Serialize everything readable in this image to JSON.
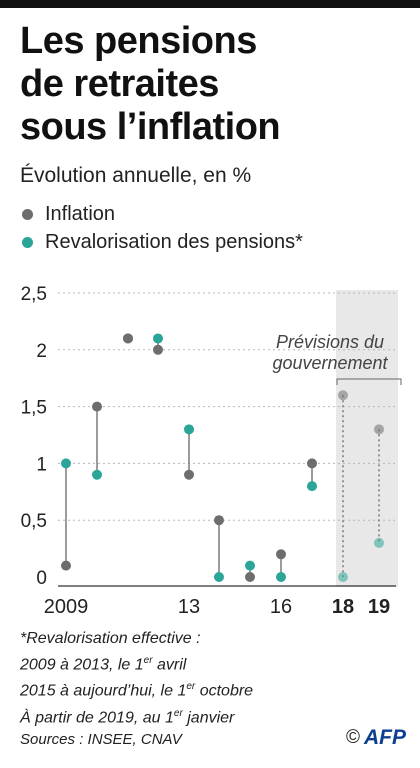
{
  "header": {
    "title_lines": [
      "Les pensions",
      "de retraites",
      "sous l’inflation"
    ],
    "subtitle": "Évolution annuelle, en %"
  },
  "colors": {
    "inflation": "#6d6d6d",
    "revalorisation": "#2aa597",
    "forecast_band": "#e8e8e8",
    "grid": "#b8b8b8"
  },
  "chart_data": {
    "type": "scatter",
    "title": "Les pensions de retraites sous l’inflation",
    "subtitle": "Évolution annuelle, en %",
    "ylim": [
      0,
      2.5
    ],
    "y_ticks": [
      "0",
      "0,5",
      "1",
      "1,5",
      "2",
      "2,5"
    ],
    "x_tick_labels": [
      {
        "x": 2009,
        "label": "2009",
        "bold": false
      },
      {
        "x": 2013,
        "label": "13",
        "bold": false
      },
      {
        "x": 2016,
        "label": "16",
        "bold": false
      },
      {
        "x": 2018,
        "label": "18",
        "bold": true
      },
      {
        "x": 2019,
        "label": "19",
        "bold": true
      }
    ],
    "x": [
      2009,
      2010,
      2011,
      2012,
      2013,
      2014,
      2015,
      2016,
      2017,
      2018,
      2019
    ],
    "series": [
      {
        "name": "Inflation",
        "values": [
          0.1,
          1.5,
          2.1,
          2.0,
          0.9,
          0.5,
          0.0,
          0.2,
          1.0,
          1.6,
          1.3
        ]
      },
      {
        "name": "Revalorisation des pensions*",
        "values": [
          1.0,
          0.9,
          2.1,
          2.1,
          1.3,
          0.0,
          0.1,
          0.0,
          0.8,
          0.0,
          0.3
        ]
      }
    ],
    "forecast": {
      "from": 2018,
      "to": 2019,
      "label_lines": [
        "Prévisions du",
        "gouvernement"
      ]
    },
    "grid": true,
    "legend_position": "top-left"
  },
  "footnote": {
    "lines": [
      {
        "text": "*Revalorisation effective :",
        "sup": "",
        "after": ""
      },
      {
        "text": "2009 à 2013, le 1",
        "sup": "er",
        "after": " avril"
      },
      {
        "text": "2015 à aujourd’hui, le 1",
        "sup": "er",
        "after": " octobre"
      },
      {
        "text": "À partir de 2019, au 1",
        "sup": "er",
        "after": " janvier"
      }
    ]
  },
  "sources": "Sources : INSEE, CNAV",
  "credit": {
    "copyright": "©",
    "logo": "AFP"
  }
}
